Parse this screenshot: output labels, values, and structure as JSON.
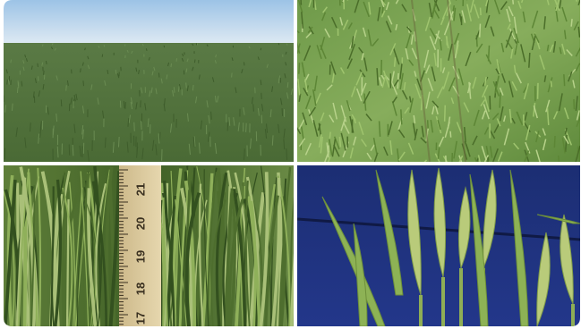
{
  "ruler": {
    "labels": [
      "21",
      "20",
      "19",
      "18",
      "17"
    ]
  }
}
